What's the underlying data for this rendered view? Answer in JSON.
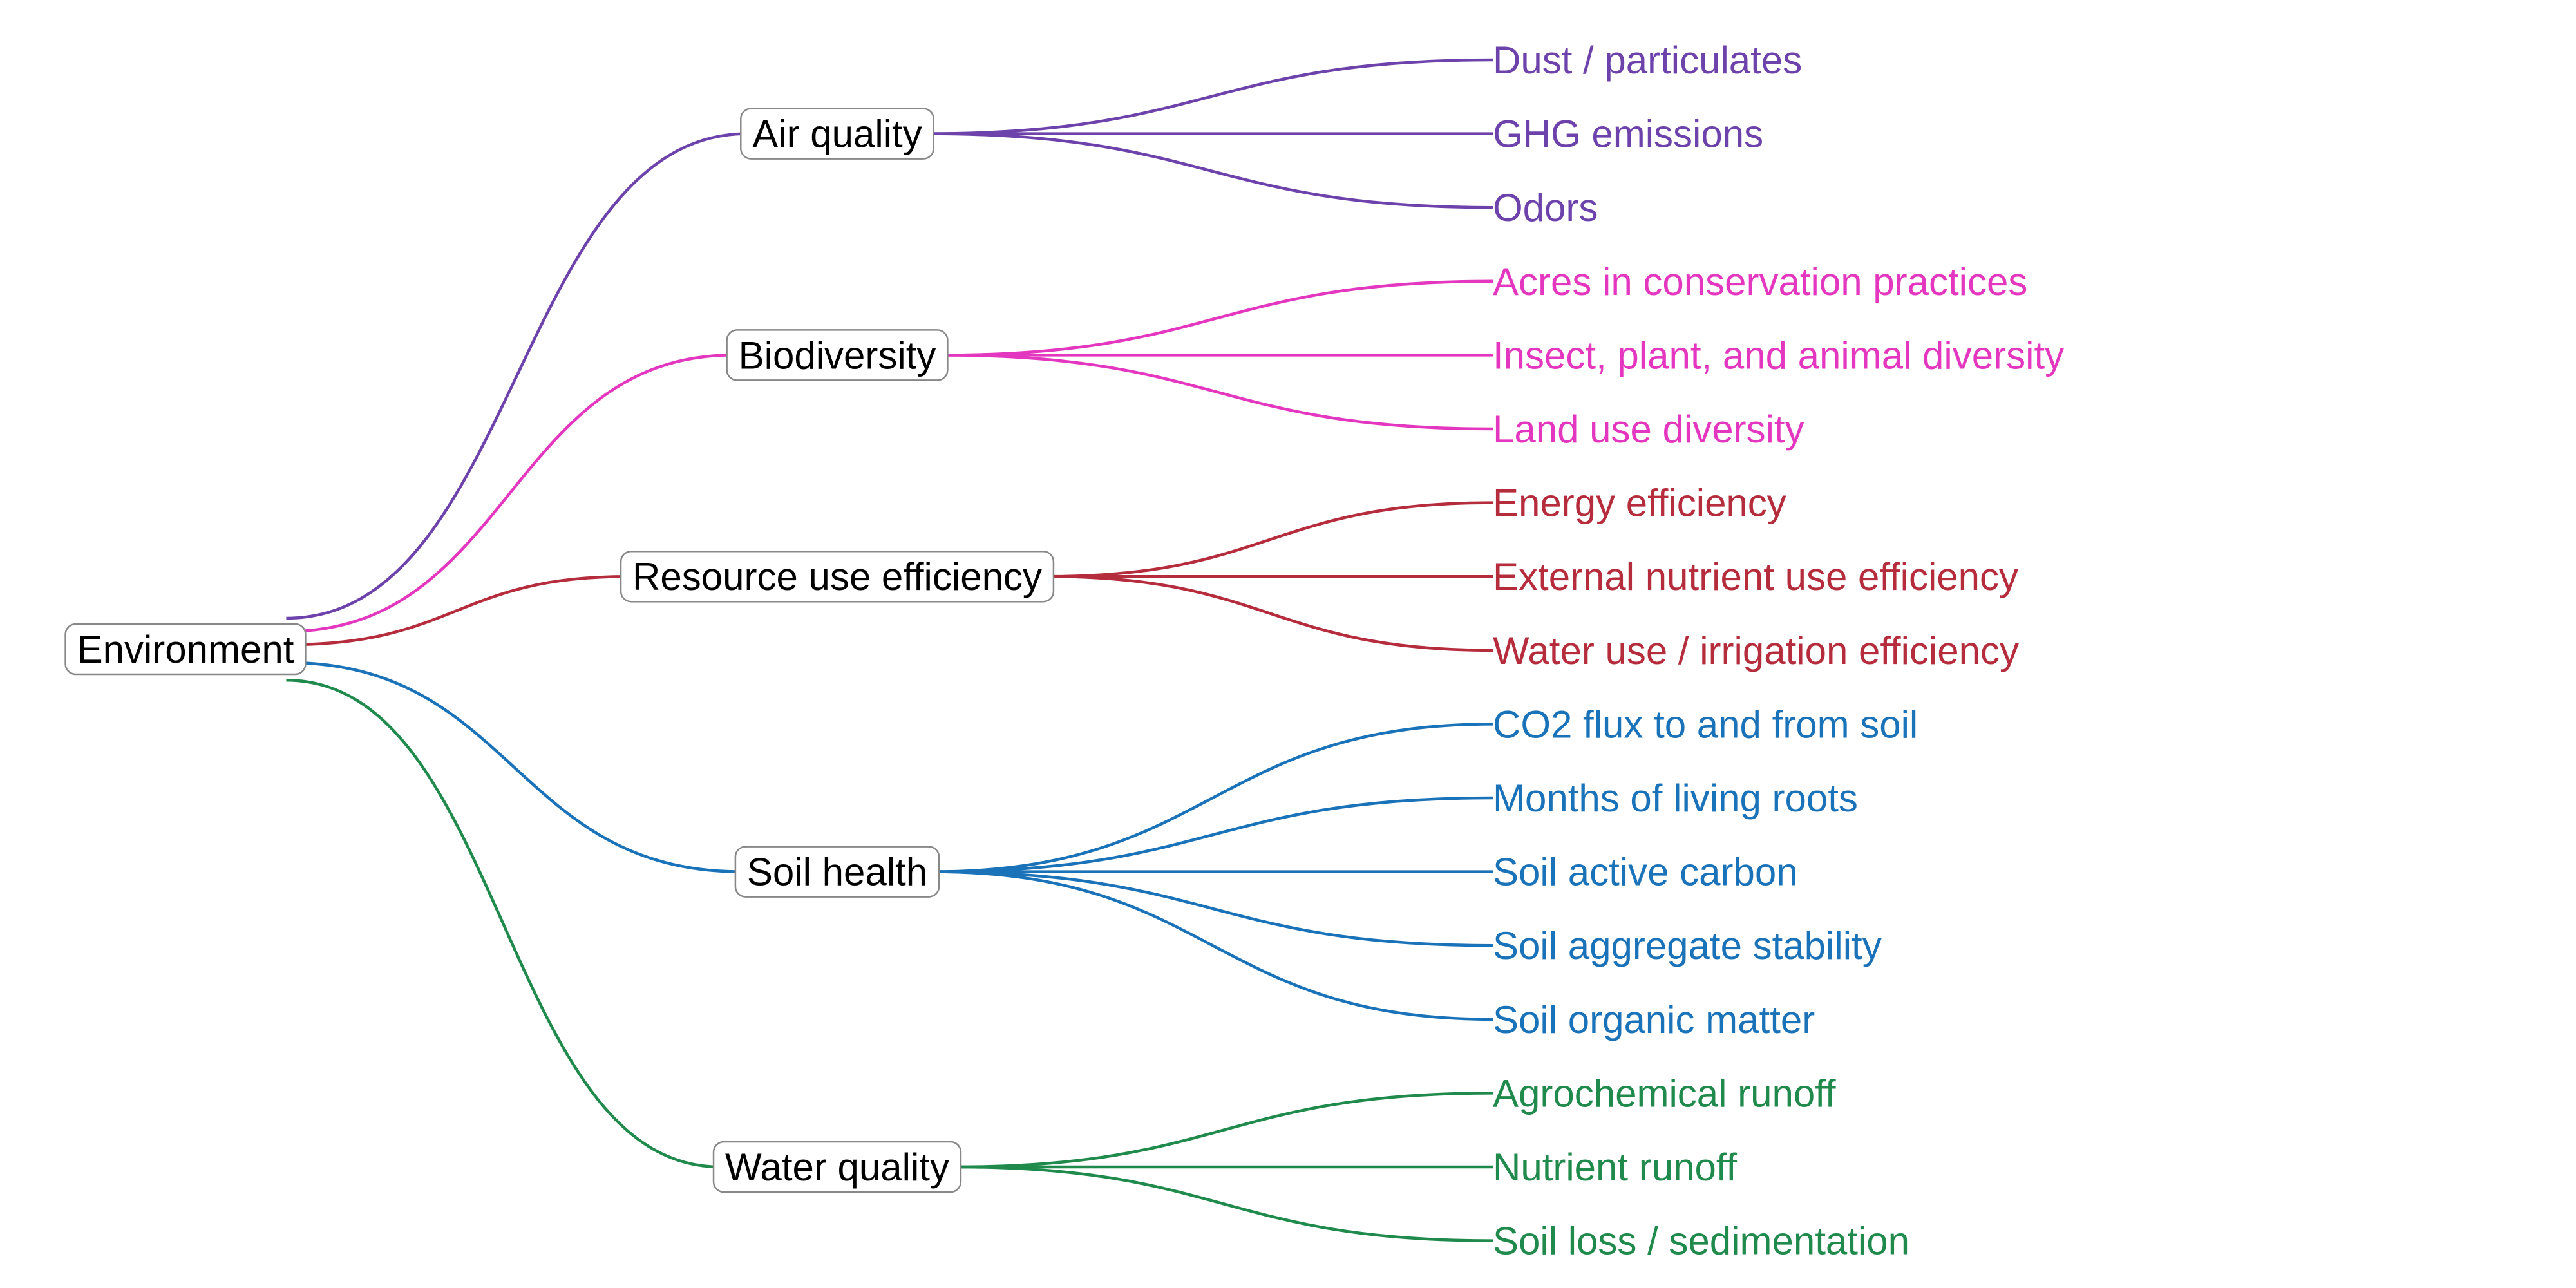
{
  "diagram": {
    "root": {
      "label": "Environment"
    },
    "categories": [
      {
        "label": "Air quality",
        "color": "#6d43ab",
        "leaves": [
          "Dust / particulates",
          "GHG emissions",
          "Odors"
        ]
      },
      {
        "label": "Biodiversity",
        "color": "#e437bf",
        "leaves": [
          "Acres in conservation practices",
          "Insect, plant, and animal diversity",
          "Land use diversity"
        ]
      },
      {
        "label": "Resource use efficiency",
        "color": "#b52c3c",
        "leaves": [
          "Energy efficiency",
          "External nutrient use efficiency",
          "Water use / irrigation efficiency"
        ]
      },
      {
        "label": "Soil health",
        "color": "#1a72b8",
        "leaves": [
          "CO2 flux to and from soil",
          "Months of living roots",
          "Soil active carbon",
          "Soil aggregate stability",
          "Soil organic matter"
        ]
      },
      {
        "label": "Water quality",
        "color": "#1f8a4c",
        "leaves": [
          "Agrochemical runoff",
          "Nutrient runoff",
          "Soil loss / sedimentation"
        ]
      }
    ]
  }
}
